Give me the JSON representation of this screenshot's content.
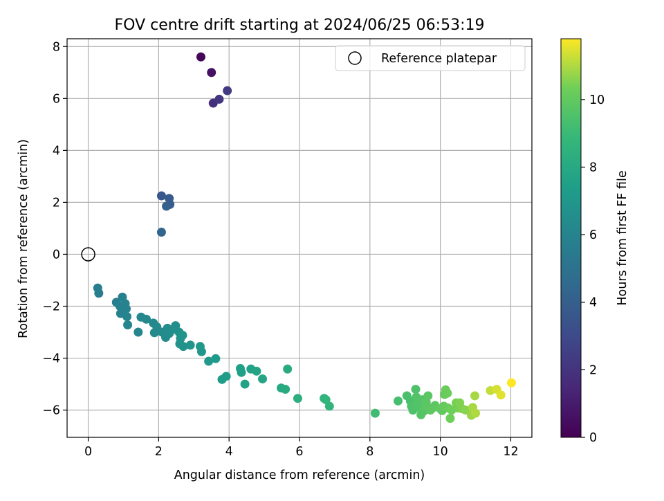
{
  "chart_data": {
    "type": "scatter",
    "title": "FOV centre drift starting at 2024/06/25 06:53:19",
    "xlabel": "Angular distance from reference (arcmin)",
    "ylabel": "Rotation from reference (arcmin)",
    "xlim": [
      -0.6,
      12.6
    ],
    "ylim": [
      -7.05,
      8.3
    ],
    "xticks": [
      0,
      2,
      4,
      6,
      8,
      10,
      12
    ],
    "yticks": [
      -6,
      -4,
      -2,
      0,
      2,
      4,
      6,
      8
    ],
    "grid": true,
    "legend": {
      "position": "top-right",
      "entries": [
        "Reference platepar"
      ]
    },
    "reference_point": {
      "x": 0,
      "y": 0
    },
    "colorbar": {
      "label": "Hours from first FF file",
      "range": [
        0,
        11.8
      ],
      "ticks": [
        0,
        2,
        4,
        6,
        8,
        10
      ],
      "colormap": "viridis"
    },
    "points": [
      {
        "x": 3.2,
        "y": 7.6,
        "c": 0.2
      },
      {
        "x": 3.5,
        "y": 7.0,
        "c": 0.6
      },
      {
        "x": 3.55,
        "y": 5.82,
        "c": 1.8
      },
      {
        "x": 3.72,
        "y": 5.97,
        "c": 2.1
      },
      {
        "x": 3.95,
        "y": 6.3,
        "c": 2.3
      },
      {
        "x": 2.08,
        "y": 2.25,
        "c": 3.6
      },
      {
        "x": 2.3,
        "y": 2.15,
        "c": 3.8
      },
      {
        "x": 2.32,
        "y": 1.92,
        "c": 3.9
      },
      {
        "x": 2.22,
        "y": 1.85,
        "c": 4.0
      },
      {
        "x": 2.08,
        "y": 0.85,
        "c": 4.3
      },
      {
        "x": 0.27,
        "y": -1.3,
        "c": 5.6
      },
      {
        "x": 0.3,
        "y": -1.5,
        "c": 5.6
      },
      {
        "x": 0.8,
        "y": -1.85,
        "c": 5.7
      },
      {
        "x": 0.9,
        "y": -2.0,
        "c": 5.8
      },
      {
        "x": 0.97,
        "y": -1.65,
        "c": 5.8
      },
      {
        "x": 1.05,
        "y": -1.9,
        "c": 5.9
      },
      {
        "x": 1.08,
        "y": -2.1,
        "c": 5.9
      },
      {
        "x": 0.92,
        "y": -2.28,
        "c": 5.9
      },
      {
        "x": 1.1,
        "y": -2.4,
        "c": 6.0
      },
      {
        "x": 1.12,
        "y": -2.72,
        "c": 6.0
      },
      {
        "x": 1.42,
        "y": -3.0,
        "c": 6.1
      },
      {
        "x": 1.5,
        "y": -2.42,
        "c": 6.1
      },
      {
        "x": 1.65,
        "y": -2.5,
        "c": 6.2
      },
      {
        "x": 1.85,
        "y": -2.65,
        "c": 6.2
      },
      {
        "x": 1.95,
        "y": -2.8,
        "c": 6.3
      },
      {
        "x": 1.88,
        "y": -3.02,
        "c": 6.3
      },
      {
        "x": 2.1,
        "y": -3.0,
        "c": 6.4
      },
      {
        "x": 2.2,
        "y": -3.2,
        "c": 6.4
      },
      {
        "x": 2.25,
        "y": -2.85,
        "c": 6.5
      },
      {
        "x": 2.3,
        "y": -3.05,
        "c": 6.5
      },
      {
        "x": 2.4,
        "y": -2.9,
        "c": 6.6
      },
      {
        "x": 2.48,
        "y": -2.75,
        "c": 6.6
      },
      {
        "x": 2.58,
        "y": -3.0,
        "c": 6.7
      },
      {
        "x": 2.62,
        "y": -3.25,
        "c": 6.7
      },
      {
        "x": 2.6,
        "y": -3.45,
        "c": 6.8
      },
      {
        "x": 2.7,
        "y": -3.55,
        "c": 6.8
      },
      {
        "x": 2.68,
        "y": -3.12,
        "c": 6.9
      },
      {
        "x": 2.9,
        "y": -3.5,
        "c": 6.9
      },
      {
        "x": 3.18,
        "y": -3.55,
        "c": 7.0
      },
      {
        "x": 3.22,
        "y": -3.75,
        "c": 7.0
      },
      {
        "x": 3.42,
        "y": -4.12,
        "c": 7.1
      },
      {
        "x": 3.62,
        "y": -4.02,
        "c": 7.2
      },
      {
        "x": 3.8,
        "y": -4.82,
        "c": 7.3
      },
      {
        "x": 3.92,
        "y": -4.7,
        "c": 7.3
      },
      {
        "x": 4.32,
        "y": -4.4,
        "c": 7.5
      },
      {
        "x": 4.35,
        "y": -4.55,
        "c": 7.5
      },
      {
        "x": 4.45,
        "y": -5.0,
        "c": 7.6
      },
      {
        "x": 4.62,
        "y": -4.42,
        "c": 7.6
      },
      {
        "x": 4.78,
        "y": -4.5,
        "c": 7.7
      },
      {
        "x": 4.95,
        "y": -4.8,
        "c": 7.8
      },
      {
        "x": 5.48,
        "y": -5.15,
        "c": 8.0
      },
      {
        "x": 5.6,
        "y": -5.2,
        "c": 8.1
      },
      {
        "x": 5.66,
        "y": -4.42,
        "c": 8.1
      },
      {
        "x": 5.95,
        "y": -5.55,
        "c": 8.3
      },
      {
        "x": 6.7,
        "y": -5.55,
        "c": 8.6
      },
      {
        "x": 6.75,
        "y": -5.6,
        "c": 8.7
      },
      {
        "x": 6.85,
        "y": -5.85,
        "c": 8.7
      },
      {
        "x": 8.15,
        "y": -6.12,
        "c": 9.1
      },
      {
        "x": 8.8,
        "y": -5.65,
        "c": 9.3
      },
      {
        "x": 9.05,
        "y": -5.45,
        "c": 9.4
      },
      {
        "x": 9.15,
        "y": -5.65,
        "c": 9.4
      },
      {
        "x": 9.18,
        "y": -5.85,
        "c": 9.5
      },
      {
        "x": 9.22,
        "y": -6.0,
        "c": 9.5
      },
      {
        "x": 9.3,
        "y": -5.2,
        "c": 9.5
      },
      {
        "x": 9.32,
        "y": -5.5,
        "c": 9.6
      },
      {
        "x": 9.35,
        "y": -5.75,
        "c": 9.6
      },
      {
        "x": 9.4,
        "y": -5.9,
        "c": 9.6
      },
      {
        "x": 9.45,
        "y": -6.18,
        "c": 9.7
      },
      {
        "x": 9.5,
        "y": -5.6,
        "c": 9.7
      },
      {
        "x": 9.52,
        "y": -6.05,
        "c": 9.7
      },
      {
        "x": 9.58,
        "y": -5.85,
        "c": 9.8
      },
      {
        "x": 9.6,
        "y": -5.7,
        "c": 9.8
      },
      {
        "x": 9.65,
        "y": -5.45,
        "c": 9.8
      },
      {
        "x": 9.72,
        "y": -6.0,
        "c": 9.9
      },
      {
        "x": 9.78,
        "y": -5.92,
        "c": 9.9
      },
      {
        "x": 9.85,
        "y": -5.82,
        "c": 9.9
      },
      {
        "x": 10.0,
        "y": -5.95,
        "c": 10.0
      },
      {
        "x": 10.05,
        "y": -6.02,
        "c": 10.0
      },
      {
        "x": 10.1,
        "y": -5.85,
        "c": 10.1
      },
      {
        "x": 10.12,
        "y": -5.4,
        "c": 10.1
      },
      {
        "x": 10.15,
        "y": -5.22,
        "c": 10.2
      },
      {
        "x": 10.2,
        "y": -5.35,
        "c": 10.2
      },
      {
        "x": 10.22,
        "y": -5.92,
        "c": 10.2
      },
      {
        "x": 10.28,
        "y": -6.32,
        "c": 10.3
      },
      {
        "x": 10.32,
        "y": -6.0,
        "c": 10.3
      },
      {
        "x": 10.45,
        "y": -5.72,
        "c": 10.4
      },
      {
        "x": 10.5,
        "y": -5.92,
        "c": 10.4
      },
      {
        "x": 10.55,
        "y": -5.72,
        "c": 10.5
      },
      {
        "x": 10.62,
        "y": -5.95,
        "c": 10.5
      },
      {
        "x": 10.72,
        "y": -6.0,
        "c": 10.6
      },
      {
        "x": 10.88,
        "y": -6.2,
        "c": 10.8
      },
      {
        "x": 10.92,
        "y": -5.9,
        "c": 10.9
      },
      {
        "x": 10.98,
        "y": -5.45,
        "c": 10.9
      },
      {
        "x": 11.0,
        "y": -6.12,
        "c": 11.0
      },
      {
        "x": 11.42,
        "y": -5.25,
        "c": 11.2
      },
      {
        "x": 11.6,
        "y": -5.2,
        "c": 11.4
      },
      {
        "x": 11.72,
        "y": -5.42,
        "c": 11.5
      },
      {
        "x": 12.02,
        "y": -4.95,
        "c": 11.8
      }
    ]
  }
}
